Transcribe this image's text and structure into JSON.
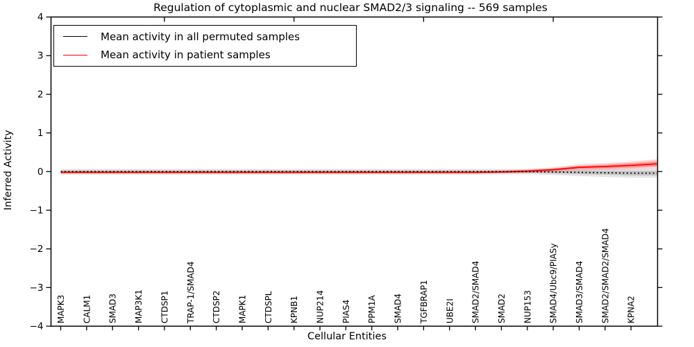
{
  "chart_data": {
    "type": "line",
    "title": "Regulation of cytoplasmic and nuclear SMAD2/3 signaling -- 569 samples",
    "xlabel": "Cellular Entities",
    "ylabel": "Inferred Activity",
    "ylim": [
      -4,
      4
    ],
    "ytick_labels": [
      "4",
      "3",
      "2",
      "1",
      "0",
      "−1",
      "−2",
      "−3",
      "−4"
    ],
    "ytick_values": [
      4,
      3,
      2,
      1,
      0,
      -1,
      -2,
      -3,
      -4
    ],
    "grid": false,
    "legend_position": "upper left",
    "categories": [
      "MAPK3",
      "CALM1",
      "SMAD3",
      "MAP3K1",
      "CTDSP1",
      "TRAP-1/SMAD4",
      "CTDSP2",
      "MAPK1",
      "CTDSPL",
      "KPNB1",
      "NUP214",
      "PIAS4",
      "PPM1A",
      "SMAD4",
      "TGFBRAP1",
      "UBE2I",
      "SMAD2/SMAD4",
      "SMAD2",
      "NUP153",
      "SMAD4/Ubc9/PIASy",
      "SMAD3/SMAD4",
      "SMAD2/SMAD2/SMAD4",
      "KPNA2"
    ],
    "note": "Both curves run essentially flat at 0; the red patient curve rises to about +0.2 past KPNA2 at the right plot edge; shaded bands show spread. Values arrays contain one unlabeled trailing point at the right edge.",
    "series": [
      {
        "name": "Mean activity in all permuted samples",
        "color": "#000000",
        "line_style": "dotted",
        "band_color": "#000000",
        "values": [
          0,
          0,
          0,
          0,
          0,
          0,
          0,
          0,
          0,
          0,
          0,
          0,
          0,
          0,
          0,
          0,
          0,
          0,
          0,
          -0.01,
          -0.02,
          -0.03,
          -0.04,
          -0.04
        ],
        "band_inner": [
          0.03,
          0.03,
          0.03,
          0.03,
          0.03,
          0.03,
          0.03,
          0.03,
          0.03,
          0.03,
          0.03,
          0.03,
          0.03,
          0.03,
          0.03,
          0.03,
          0.03,
          0.03,
          0.03,
          0.04,
          0.05,
          0.05,
          0.06,
          0.06
        ],
        "band_outer": [
          0.07,
          0.07,
          0.07,
          0.07,
          0.07,
          0.07,
          0.07,
          0.07,
          0.07,
          0.07,
          0.07,
          0.07,
          0.07,
          0.07,
          0.07,
          0.07,
          0.07,
          0.07,
          0.07,
          0.08,
          0.1,
          0.11,
          0.12,
          0.12
        ]
      },
      {
        "name": "Mean activity in patient samples",
        "color": "#ff0000",
        "line_style": "solid",
        "band_color": "#ff0000",
        "values": [
          -0.02,
          -0.02,
          -0.02,
          -0.02,
          -0.02,
          -0.02,
          -0.02,
          -0.02,
          -0.02,
          -0.02,
          -0.02,
          -0.02,
          -0.02,
          -0.02,
          -0.02,
          -0.02,
          -0.02,
          -0.01,
          0.01,
          0.05,
          0.11,
          0.13,
          0.16,
          0.2
        ],
        "band_inner": [
          0.02,
          0.02,
          0.02,
          0.02,
          0.02,
          0.02,
          0.02,
          0.02,
          0.02,
          0.02,
          0.02,
          0.02,
          0.02,
          0.02,
          0.02,
          0.02,
          0.02,
          0.02,
          0.03,
          0.03,
          0.04,
          0.05,
          0.06,
          0.07
        ],
        "band_outer": [
          0.04,
          0.04,
          0.04,
          0.04,
          0.04,
          0.04,
          0.04,
          0.04,
          0.04,
          0.04,
          0.04,
          0.04,
          0.04,
          0.04,
          0.04,
          0.04,
          0.04,
          0.04,
          0.05,
          0.06,
          0.08,
          0.09,
          0.1,
          0.12
        ]
      }
    ]
  }
}
